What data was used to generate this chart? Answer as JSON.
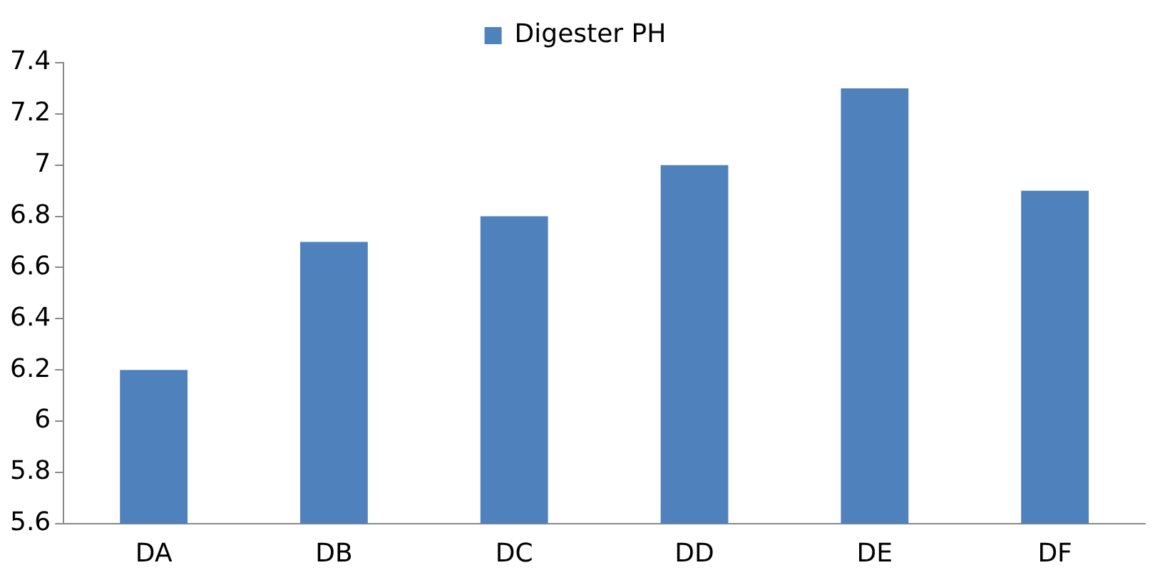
{
  "chart_data": {
    "type": "bar",
    "categories": [
      "DA",
      "DB",
      "DC",
      "DD",
      "DE",
      "DF"
    ],
    "series": [
      {
        "name": "Digester PH",
        "color": "#4f81bd",
        "values": [
          6.2,
          6.7,
          6.8,
          7.0,
          7.3,
          6.9
        ]
      }
    ],
    "ylim": [
      5.6,
      7.4
    ],
    "yticks": [
      5.6,
      5.8,
      6,
      6.2,
      6.4,
      6.6,
      6.8,
      7,
      7.2,
      7.4
    ],
    "grid": false,
    "legend": "top"
  }
}
